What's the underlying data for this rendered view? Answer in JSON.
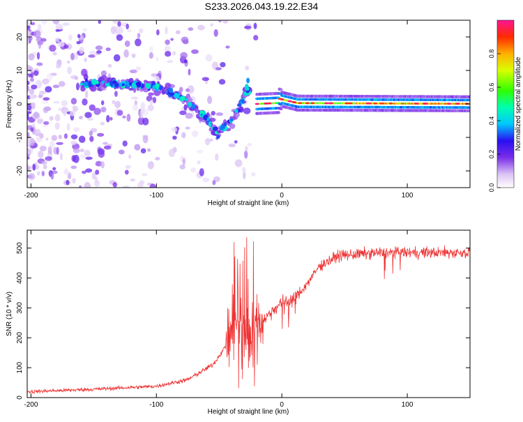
{
  "title": "S233.2026.043.19.22.E34",
  "charts": {
    "spectrogram": {
      "type": "heatmap",
      "xlabel": "Height of straight line (km)",
      "ylabel": "Frequency (Hz)",
      "xlim": [
        -203,
        150
      ],
      "ylim": [
        -25,
        25
      ],
      "xticks": [
        -200,
        -100,
        0,
        100
      ],
      "yticks": [
        -20,
        -10,
        0,
        10,
        20
      ],
      "colorbar": {
        "label": "Normalized spectral amplitude",
        "range": [
          0.0,
          1.0
        ],
        "ticks": [
          0.0,
          0.2,
          0.4,
          0.6,
          0.8
        ]
      },
      "features": [
        {
          "name": "scattered-noise",
          "x_range": [
            -203,
            -20
          ],
          "y_range": [
            -25,
            25
          ],
          "amplitude": 0.1
        },
        {
          "name": "descending-ridge",
          "points": [
            [
              -160,
              6
            ],
            [
              -120,
              6
            ],
            [
              -100,
              5
            ],
            [
              -80,
              2
            ],
            [
              -60,
              -4
            ],
            [
              -50,
              -10
            ]
          ],
          "amplitude": 0.3
        },
        {
          "name": "rising-ridge",
          "points": [
            [
              -50,
              -8
            ],
            [
              -40,
              -5
            ],
            [
              -30,
              2
            ],
            [
              -25,
              5
            ]
          ],
          "amplitude": 0.3
        },
        {
          "name": "carrier-line",
          "points": [
            [
              -20,
              0
            ],
            [
              0,
              1
            ],
            [
              150,
              0
            ]
          ],
          "amplitude": 0.9
        }
      ]
    },
    "snr": {
      "type": "line",
      "xlabel": "Height of straight line (km)",
      "ylabel": "SNR (10 * v/v)",
      "xlim": [
        -203,
        150
      ],
      "ylim": [
        0,
        560
      ],
      "xticks": [
        -200,
        -100,
        0,
        100
      ],
      "yticks": [
        0,
        100,
        200,
        300,
        400,
        500
      ],
      "line_color": "#ee3333",
      "series_envelope": [
        {
          "x": -200,
          "y": 20
        },
        {
          "x": -150,
          "y": 28
        },
        {
          "x": -100,
          "y": 38
        },
        {
          "x": -75,
          "y": 60
        },
        {
          "x": -55,
          "y": 110
        },
        {
          "x": -45,
          "y": 170
        },
        {
          "x": -35,
          "y": 250
        },
        {
          "x": -25,
          "y": 210
        },
        {
          "x": -10,
          "y": 280
        },
        {
          "x": 0,
          "y": 320
        },
        {
          "x": 10,
          "y": 330
        },
        {
          "x": 20,
          "y": 380
        },
        {
          "x": 30,
          "y": 440
        },
        {
          "x": 45,
          "y": 475
        },
        {
          "x": 80,
          "y": 485
        },
        {
          "x": 150,
          "y": 485
        }
      ]
    }
  }
}
